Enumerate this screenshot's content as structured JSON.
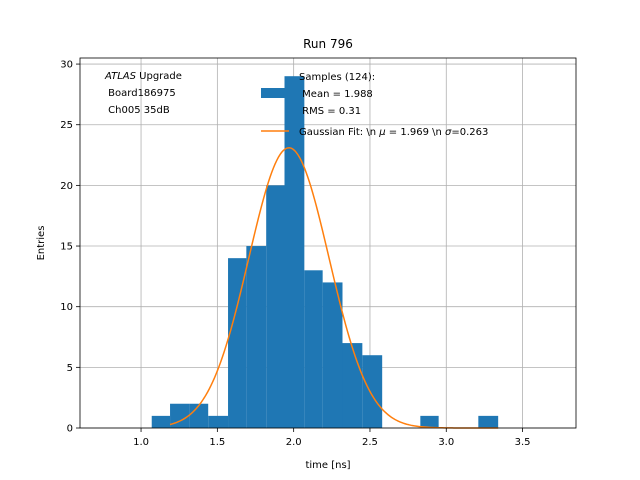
{
  "chart_data": {
    "type": "bar",
    "title": "Run 796",
    "xlabel": "time [ns]",
    "ylabel": "Entries",
    "xlim": [
      0.6,
      3.85
    ],
    "ylim": [
      0,
      30.5
    ],
    "xticks": [
      1.0,
      1.5,
      2.0,
      2.5,
      3.0,
      3.5
    ],
    "xtick_labels": [
      "1.0",
      "1.5",
      "2.0",
      "2.5",
      "3.0",
      "3.5"
    ],
    "yticks": [
      0,
      5,
      10,
      15,
      20,
      25,
      30
    ],
    "ytick_labels": [
      "0",
      "5",
      "10",
      "15",
      "20",
      "25",
      "30"
    ],
    "grid": true,
    "annotation": {
      "italic": "ATLAS",
      "line1_rest": " Upgrade",
      "line2": " Board186975",
      "line3": " Ch005 35dB"
    },
    "histogram": {
      "name": "Samples (124):",
      "stats": [
        " Mean = 1.988",
        " RMS = 0.31"
      ],
      "color": "#1f77b4",
      "bins": [
        {
          "x0": 1.07,
          "x1": 1.19,
          "count": 1
        },
        {
          "x0": 1.19,
          "x1": 1.32,
          "count": 2
        },
        {
          "x0": 1.32,
          "x1": 1.44,
          "count": 2
        },
        {
          "x0": 1.44,
          "x1": 1.57,
          "count": 1
        },
        {
          "x0": 1.57,
          "x1": 1.69,
          "count": 14
        },
        {
          "x0": 1.69,
          "x1": 1.82,
          "count": 15
        },
        {
          "x0": 1.82,
          "x1": 1.94,
          "count": 20
        },
        {
          "x0": 1.94,
          "x1": 2.07,
          "count": 29
        },
        {
          "x0": 2.07,
          "x1": 2.19,
          "count": 13
        },
        {
          "x0": 2.19,
          "x1": 2.32,
          "count": 12
        },
        {
          "x0": 2.32,
          "x1": 2.45,
          "count": 7
        },
        {
          "x0": 2.45,
          "x1": 2.58,
          "count": 6
        },
        {
          "x0": 2.58,
          "x1": 2.7,
          "count": 0
        },
        {
          "x0": 2.7,
          "x1": 2.83,
          "count": 0
        },
        {
          "x0": 2.83,
          "x1": 2.95,
          "count": 1
        },
        {
          "x0": 2.95,
          "x1": 3.08,
          "count": 0
        },
        {
          "x0": 3.08,
          "x1": 3.21,
          "count": 0
        },
        {
          "x0": 3.21,
          "x1": 3.34,
          "count": 1
        }
      ]
    },
    "fit": {
      "label": "Gaussian Fit: \\n $\\mu$ = 1.969 \\n $\\sigma$=0.263",
      "label_text": "Gaussian Fit: \\n ",
      "label_mu": "μ",
      "label_mid": " = 1.969 \\n ",
      "label_sigma": "σ",
      "label_end": "=0.263",
      "color": "#ff7f0e",
      "amplitude": 23.1,
      "mu": 1.969,
      "sigma": 0.263,
      "x_range": [
        1.19,
        3.34
      ]
    },
    "legend_placement": "top-center"
  }
}
